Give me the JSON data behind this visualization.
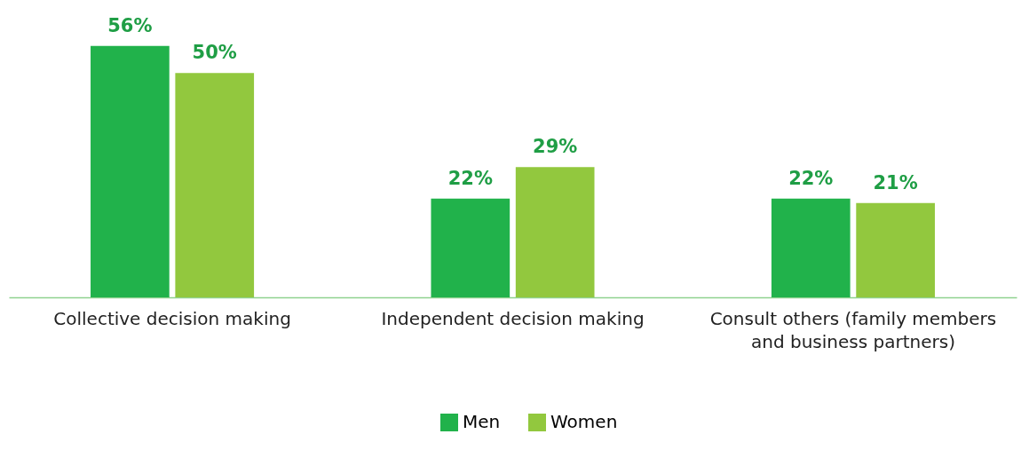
{
  "chart_data": {
    "type": "bar",
    "categories": [
      "Collective decision making",
      "Independent decision making",
      "Consult others (family members and business partners)"
    ],
    "series": [
      {
        "name": "Men",
        "color": "#21b24b",
        "values": [
          56,
          22,
          22
        ],
        "value_labels": [
          "56%",
          "22%",
          "22%"
        ]
      },
      {
        "name": "Women",
        "color": "#92c83e",
        "values": [
          50,
          29,
          21
        ],
        "value_labels": [
          "50%",
          "29%",
          "21%"
        ]
      }
    ],
    "legend": "bottom",
    "grid": false
  }
}
